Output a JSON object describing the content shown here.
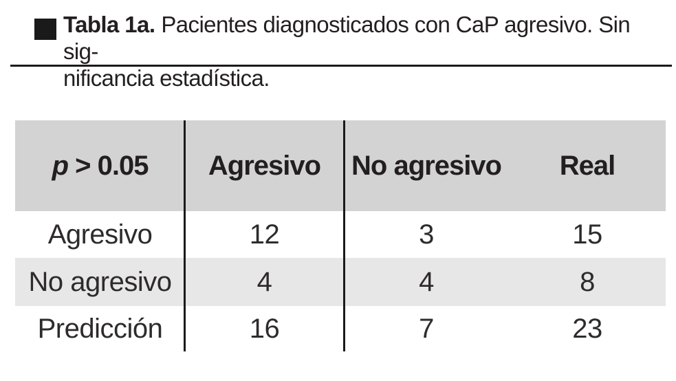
{
  "caption": {
    "label_bold": "Tabla 1a.",
    "line1_rest": "Pacientes diagnosticados con CaP agresivo. Sin sig-",
    "line2": "nificancia estadística."
  },
  "table": {
    "header": {
      "p_italic": "p",
      "p_rest": " > 0.05",
      "col_agresivo": "Agresivo",
      "col_no_agresivo": "No agresivo",
      "col_real": "Real"
    },
    "rows": [
      {
        "label": "Agresivo",
        "agresivo": "12",
        "no_agresivo": "3",
        "real": "15"
      },
      {
        "label": "No agresivo",
        "agresivo": "4",
        "no_agresivo": "4",
        "real": "8"
      },
      {
        "label": "Predicción",
        "agresivo": "16",
        "no_agresivo": "7",
        "real": "23"
      }
    ]
  },
  "colors": {
    "header_bg": "#d3d3d3",
    "row_alt_bg": "#e7e7e7",
    "text": "#231f20",
    "line": "#1a1a1a"
  }
}
